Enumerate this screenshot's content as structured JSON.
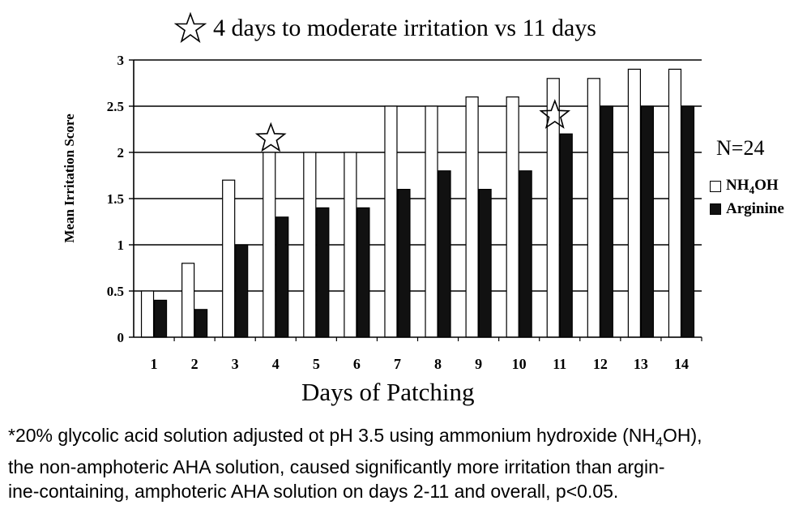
{
  "title": {
    "icon": "star-outline-icon",
    "text": "4 days to moderate irritation vs 11 days"
  },
  "n_label": "N=24",
  "legend": [
    {
      "name": "NH4OH",
      "prefix": "NH",
      "sub": "4",
      "suffix": "OH",
      "swatch": "white"
    },
    {
      "name": "Arginine",
      "prefix": "Arginine",
      "sub": "",
      "suffix": "",
      "swatch": "black"
    }
  ],
  "colors": {
    "nh4oh_fill": "#ffffff",
    "arginine_fill": "#111111",
    "stroke": "#000000"
  },
  "footnote": {
    "line1_pre": "*20% glycolic acid solution adjusted ot pH 3.5 using ammonium hydroxide (NH",
    "line1_sub": "4",
    "line1_post": "OH),",
    "line2": "the non-amphoteric AHA solution, caused significantly more irritation than argin-",
    "line3": "ine-containing, amphoteric AHA solution on days 2-11 and overall, p<0.05."
  },
  "chart_data": {
    "type": "bar",
    "xlabel": "Days of Patching",
    "ylabel": "Mean Irritation Score",
    "categories": [
      "1",
      "2",
      "3",
      "4",
      "5",
      "6",
      "7",
      "8",
      "9",
      "10",
      "11",
      "12",
      "13",
      "14"
    ],
    "series": [
      {
        "name": "NH4OH",
        "fill": "white",
        "values": [
          0.5,
          0.8,
          1.7,
          2.0,
          2.0,
          2.0,
          2.5,
          2.5,
          2.6,
          2.6,
          2.8,
          2.8,
          2.9,
          2.9
        ]
      },
      {
        "name": "Arginine",
        "fill": "black",
        "values": [
          0.4,
          0.3,
          1.0,
          1.3,
          1.4,
          1.4,
          1.6,
          1.8,
          1.6,
          1.8,
          2.2,
          2.5,
          2.5,
          2.5
        ]
      }
    ],
    "ylim": [
      0,
      3
    ],
    "yticks": [
      "0",
      "0.5",
      "1",
      "1.5",
      "2",
      "2.5",
      "3"
    ],
    "grid": true,
    "annotations": [
      {
        "type": "star-outline",
        "category": "4",
        "y": 2.15
      },
      {
        "type": "star-outline",
        "category": "11",
        "y": 2.4
      }
    ]
  }
}
